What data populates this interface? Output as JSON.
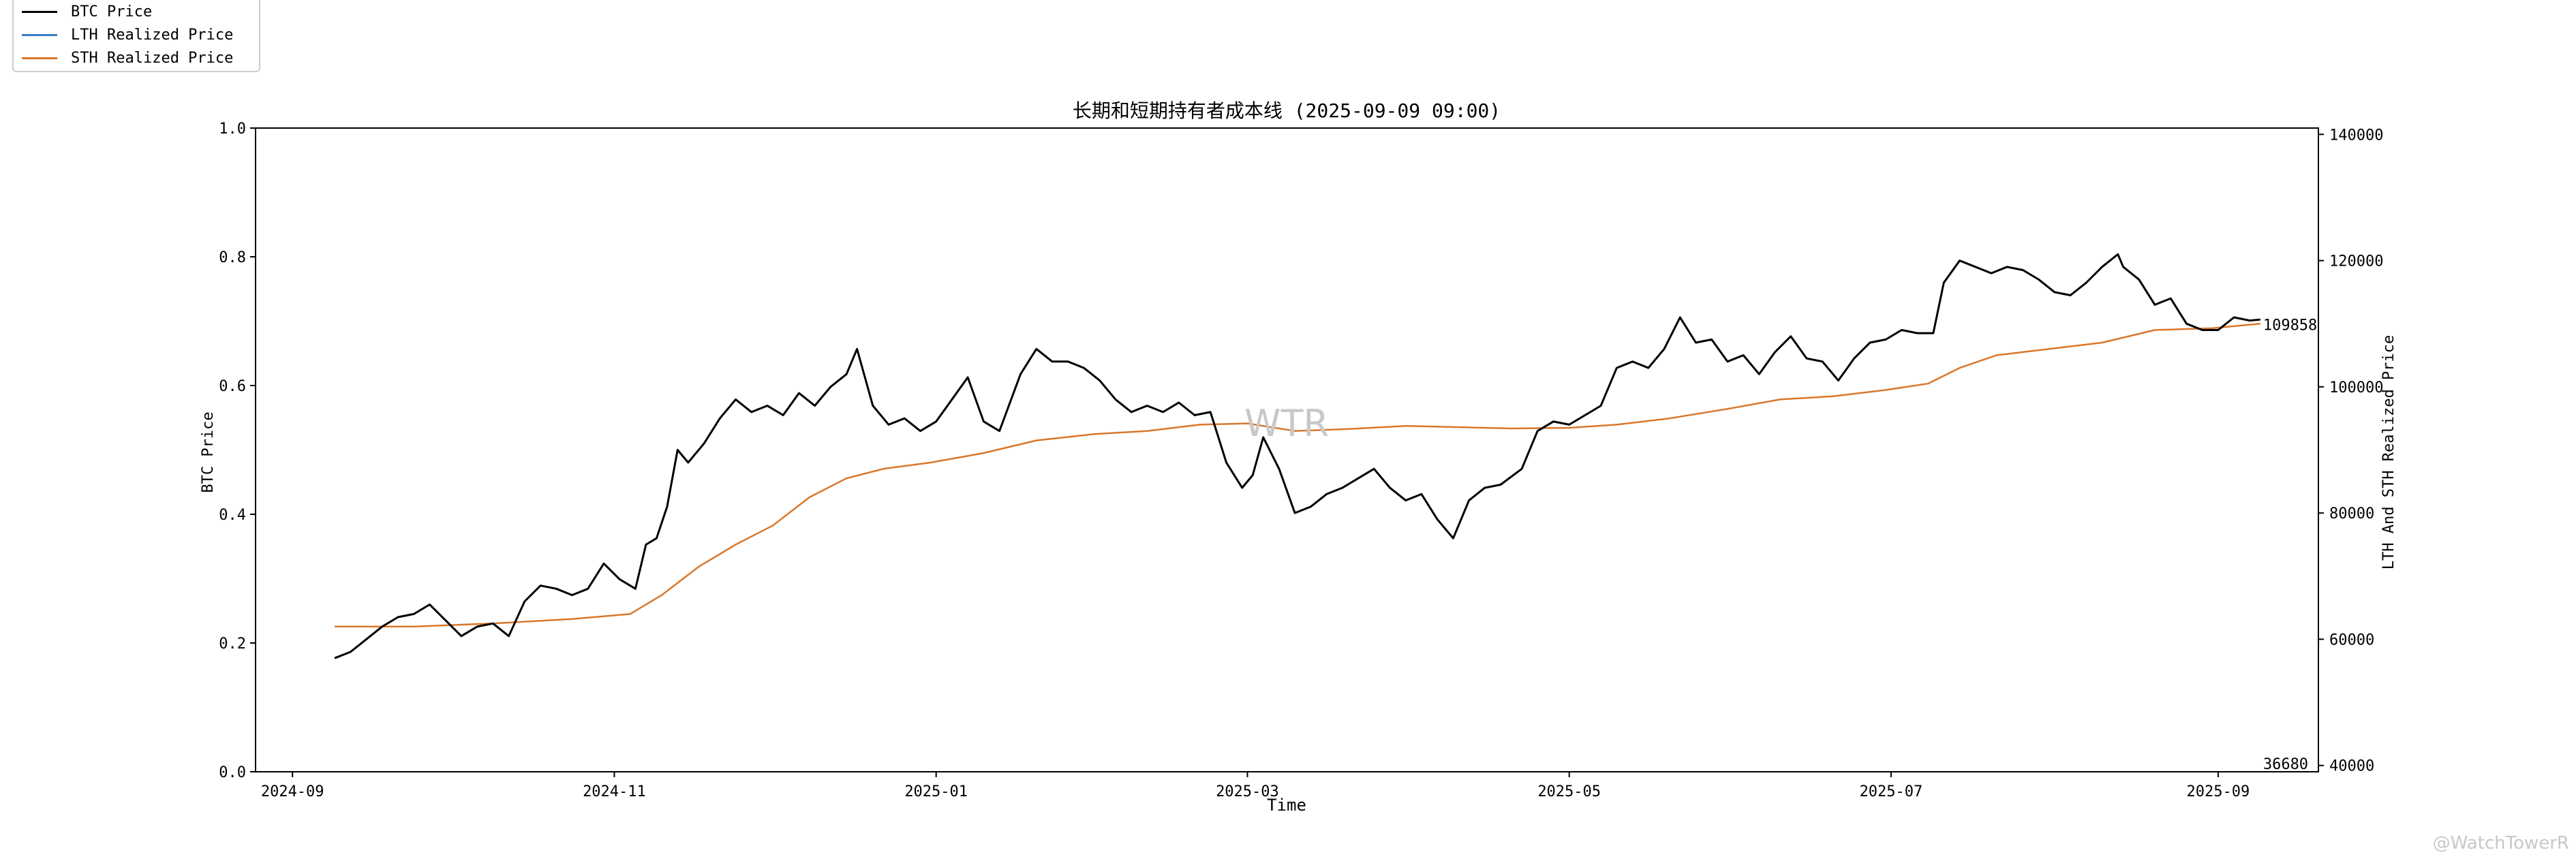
{
  "colors": {
    "btc": "#000000",
    "lth": "#3a7dc9",
    "sth": "#d9772b",
    "watermark": "#c8c8c8"
  },
  "legend": [
    "BTC Price",
    "LTH Realized Price",
    "STH Realized Price"
  ],
  "watermarks": {
    "center": "WTR",
    "corner": "@WatchTowerR"
  },
  "chart_data": {
    "type": "line",
    "title": "长期和短期持有者成本线 (2025-09-09 09:00)",
    "xlabel": "Time",
    "ylabel_left": "BTC Price",
    "ylabel_right": "LTH And STH Realized Price",
    "xlim": [
      "2024-08-25",
      "2025-09-20"
    ],
    "ylim_left": [
      0.0,
      1.0
    ],
    "ylim_right": [
      39000,
      141000
    ],
    "left_ticks": [
      "0.0",
      "0.2",
      "0.4",
      "0.6",
      "0.8",
      "1.0"
    ],
    "right_ticks": [
      40000,
      60000,
      80000,
      100000,
      120000,
      140000
    ],
    "x_ticks": [
      "2024-09",
      "2024-11",
      "2025-01",
      "2025-03",
      "2025-05",
      "2025-07",
      "2025-09"
    ],
    "annotations": [
      {
        "text": "109858",
        "x": "2025-09-09",
        "y": 109858
      },
      {
        "text": "36680",
        "x": "2025-09-09",
        "y": 39000
      }
    ],
    "series": [
      {
        "name": "BTC Price",
        "x": [
          "2024-09-09",
          "2024-09-12",
          "2024-09-15",
          "2024-09-18",
          "2024-09-21",
          "2024-09-24",
          "2024-09-27",
          "2024-09-30",
          "2024-10-03",
          "2024-10-06",
          "2024-10-09",
          "2024-10-12",
          "2024-10-15",
          "2024-10-18",
          "2024-10-21",
          "2024-10-24",
          "2024-10-27",
          "2024-10-30",
          "2024-11-02",
          "2024-11-05",
          "2024-11-07",
          "2024-11-09",
          "2024-11-11",
          "2024-11-13",
          "2024-11-15",
          "2024-11-18",
          "2024-11-21",
          "2024-11-24",
          "2024-11-27",
          "2024-11-30",
          "2024-12-03",
          "2024-12-06",
          "2024-12-09",
          "2024-12-12",
          "2024-12-15",
          "2024-12-17",
          "2024-12-20",
          "2024-12-23",
          "2024-12-26",
          "2024-12-29",
          "2025-01-01",
          "2025-01-04",
          "2025-01-07",
          "2025-01-10",
          "2025-01-13",
          "2025-01-17",
          "2025-01-20",
          "2025-01-23",
          "2025-01-26",
          "2025-01-29",
          "2025-02-01",
          "2025-02-04",
          "2025-02-07",
          "2025-02-10",
          "2025-02-13",
          "2025-02-16",
          "2025-02-19",
          "2025-02-22",
          "2025-02-25",
          "2025-02-28",
          "2025-03-02",
          "2025-03-04",
          "2025-03-07",
          "2025-03-10",
          "2025-03-13",
          "2025-03-16",
          "2025-03-19",
          "2025-03-22",
          "2025-03-25",
          "2025-03-28",
          "2025-03-31",
          "2025-04-03",
          "2025-04-06",
          "2025-04-09",
          "2025-04-12",
          "2025-04-15",
          "2025-04-18",
          "2025-04-22",
          "2025-04-25",
          "2025-04-28",
          "2025-05-01",
          "2025-05-04",
          "2025-05-07",
          "2025-05-10",
          "2025-05-13",
          "2025-05-16",
          "2025-05-19",
          "2025-05-22",
          "2025-05-25",
          "2025-05-28",
          "2025-05-31",
          "2025-06-03",
          "2025-06-06",
          "2025-06-09",
          "2025-06-12",
          "2025-06-15",
          "2025-06-18",
          "2025-06-21",
          "2025-06-24",
          "2025-06-27",
          "2025-06-30",
          "2025-07-03",
          "2025-07-06",
          "2025-07-09",
          "2025-07-11",
          "2025-07-14",
          "2025-07-17",
          "2025-07-20",
          "2025-07-23",
          "2025-07-26",
          "2025-07-29",
          "2025-08-01",
          "2025-08-04",
          "2025-08-07",
          "2025-08-10",
          "2025-08-13",
          "2025-08-14",
          "2025-08-17",
          "2025-08-20",
          "2025-08-23",
          "2025-08-26",
          "2025-08-29",
          "2025-09-01",
          "2025-09-04",
          "2025-09-07",
          "2025-09-09"
        ],
        "y": [
          57000,
          58000,
          60000,
          62000,
          63500,
          64000,
          65500,
          63000,
          60500,
          62000,
          62500,
          60500,
          66000,
          68500,
          68000,
          67000,
          68000,
          72000,
          69500,
          68000,
          75000,
          76000,
          81000,
          90000,
          88000,
          91000,
          95000,
          98000,
          96000,
          97000,
          95500,
          99000,
          97000,
          100000,
          102000,
          106000,
          97000,
          94000,
          95000,
          93000,
          94500,
          98000,
          101500,
          94500,
          93000,
          102000,
          106000,
          104000,
          104000,
          103000,
          101000,
          98000,
          96000,
          97000,
          96000,
          97500,
          95500,
          96000,
          88000,
          84000,
          86000,
          92000,
          87000,
          80000,
          81000,
          83000,
          84000,
          85500,
          87000,
          84000,
          82000,
          83000,
          79000,
          76000,
          82000,
          84000,
          84500,
          87000,
          93000,
          94500,
          94000,
          95500,
          97000,
          103000,
          104000,
          103000,
          106000,
          111000,
          107000,
          107500,
          104000,
          105000,
          102000,
          105500,
          108000,
          104500,
          104000,
          101000,
          104500,
          107000,
          107500,
          109000,
          108500,
          108500,
          116500,
          120000,
          119000,
          118000,
          119000,
          118500,
          117000,
          115000,
          114500,
          116500,
          119000,
          121000,
          119000,
          117000,
          113000,
          114000,
          110000,
          109000,
          109000,
          111000,
          110500,
          110658
        ]
      },
      {
        "name": "STH Realized Price",
        "x": [
          "2024-09-09",
          "2024-09-24",
          "2024-10-09",
          "2024-10-24",
          "2024-11-04",
          "2024-11-10",
          "2024-11-17",
          "2024-11-24",
          "2024-12-01",
          "2024-12-08",
          "2024-12-15",
          "2024-12-22",
          "2024-12-31",
          "2025-01-10",
          "2025-01-20",
          "2025-01-31",
          "2025-02-10",
          "2025-02-20",
          "2025-03-01",
          "2025-03-10",
          "2025-03-20",
          "2025-03-31",
          "2025-04-10",
          "2025-04-20",
          "2025-05-01",
          "2025-05-10",
          "2025-05-20",
          "2025-05-31",
          "2025-06-10",
          "2025-06-20",
          "2025-06-30",
          "2025-07-08",
          "2025-07-14",
          "2025-07-21",
          "2025-07-31",
          "2025-08-10",
          "2025-08-20",
          "2025-08-31",
          "2025-09-09"
        ],
        "y": [
          62000,
          62000,
          62500,
          63200,
          64000,
          67000,
          71500,
          75000,
          78000,
          82500,
          85500,
          87000,
          88000,
          89500,
          91500,
          92500,
          93000,
          94000,
          94200,
          93000,
          93300,
          93800,
          93600,
          93400,
          93500,
          94000,
          95000,
          96500,
          98000,
          98500,
          99500,
          100500,
          103000,
          105000,
          106000,
          107000,
          109000,
          109300,
          110000
        ]
      },
      {
        "name": "LTH Realized Price",
        "x": [],
        "y": []
      }
    ]
  }
}
